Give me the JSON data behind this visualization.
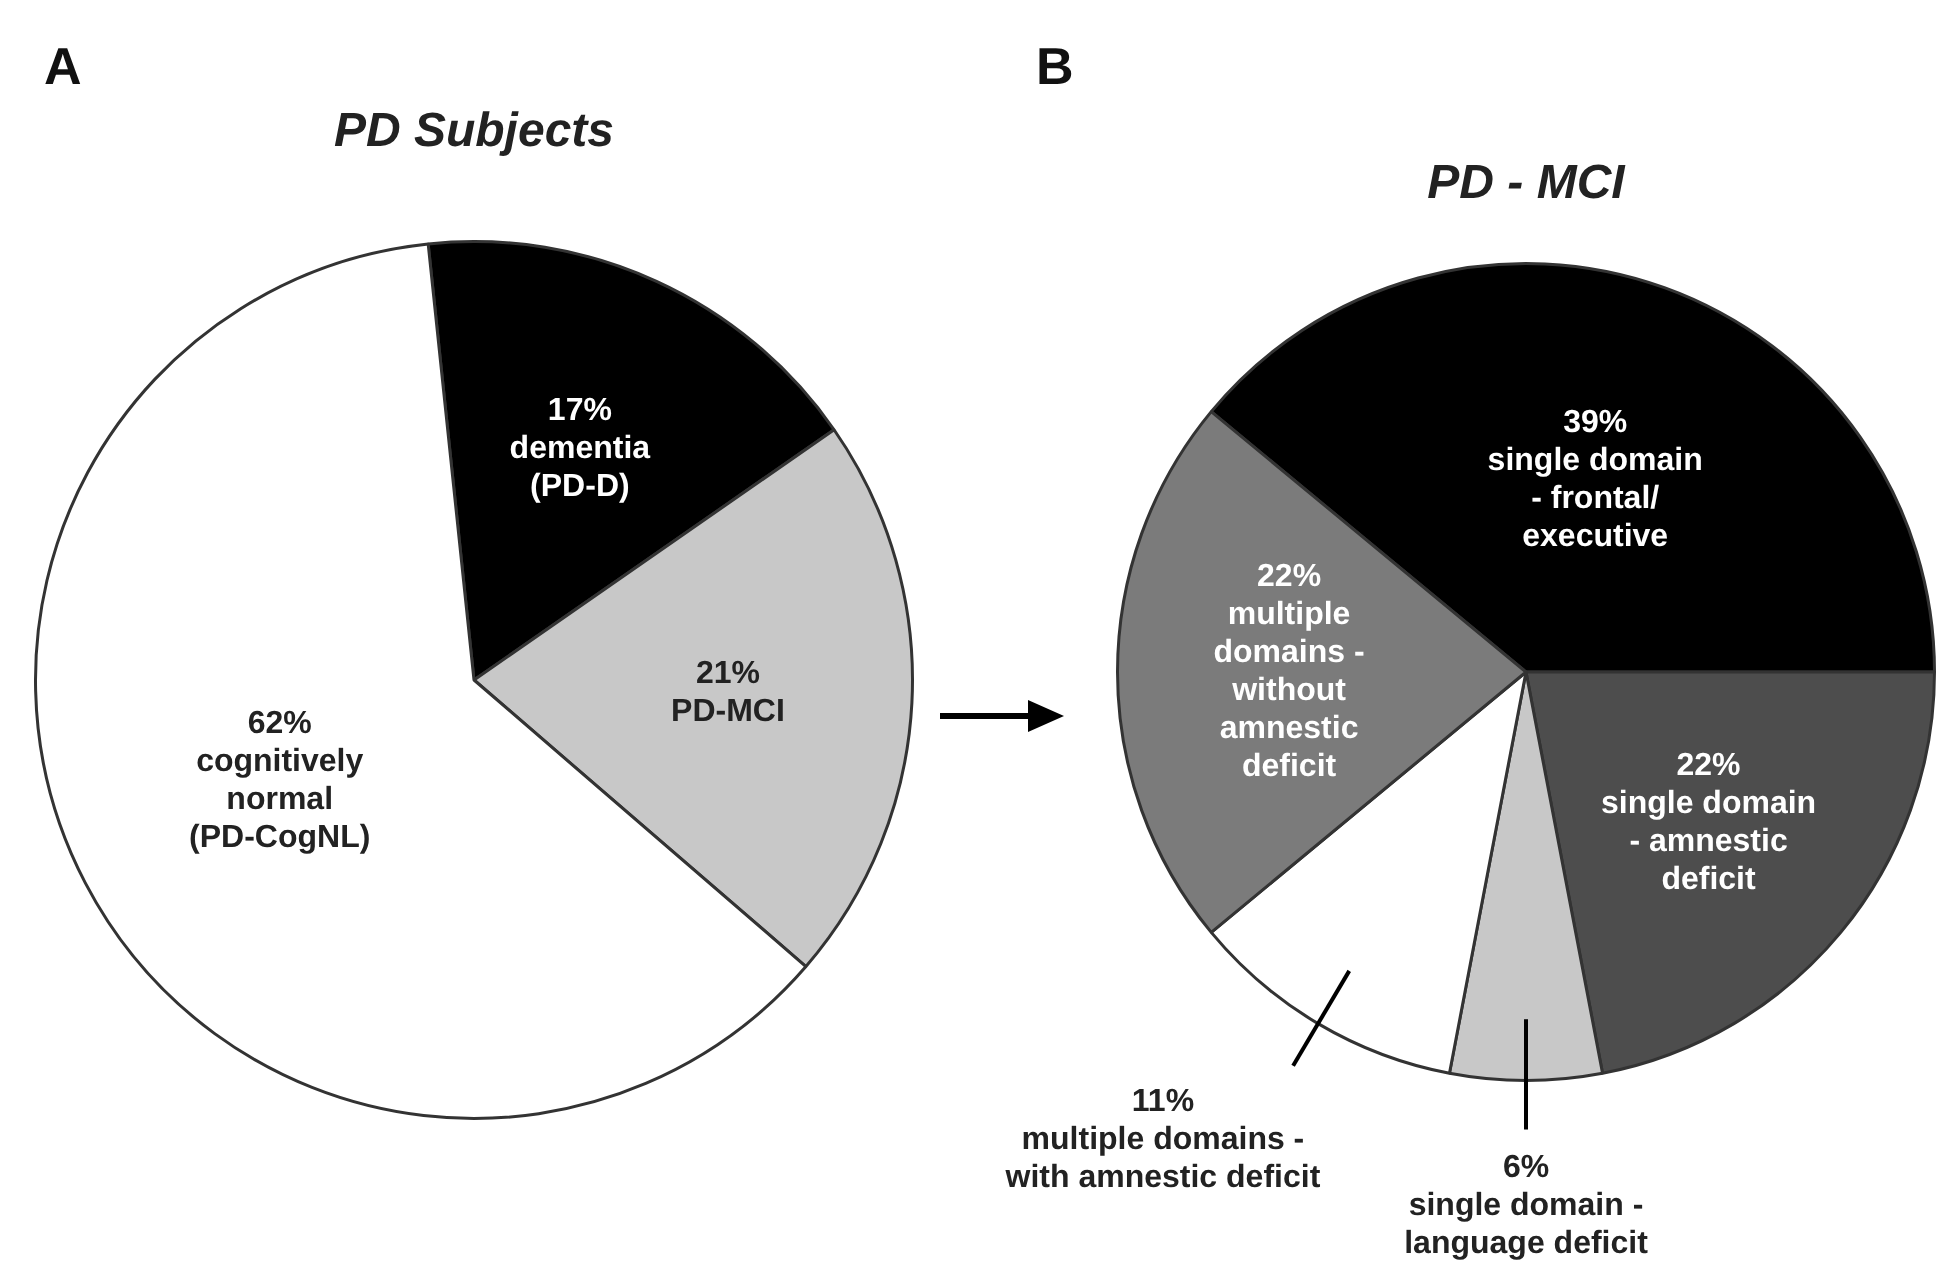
{
  "chart_data": [
    {
      "type": "pie",
      "title": "PD Subjects",
      "annotations": [
        "A"
      ],
      "categories": [
        "dementia (PD-D)",
        "PD-MCI",
        "cognitively normal (PD-CogNL)"
      ],
      "values": [
        17,
        21,
        62
      ],
      "colors": [
        "#000000",
        "#c8c8c8",
        "#ffffff"
      ],
      "value_labels": [
        "17%",
        "21%",
        "62%"
      ]
    },
    {
      "type": "pie",
      "title": "PD - MCI",
      "annotations": [
        "B"
      ],
      "categories": [
        "single domain - frontal/executive",
        "single domain - amnestic deficit",
        "single domain - language deficit",
        "multiple domains - with amnestic deficit",
        "multiple domains - without amnestic deficit"
      ],
      "values": [
        39,
        22,
        6,
        11,
        22
      ],
      "colors": [
        "#000000",
        "#4d4d4d",
        "#c8c8c8",
        "#ffffff",
        "#7b7b7b"
      ],
      "value_labels": [
        "39%",
        "22%",
        "6%",
        "11%",
        "22%"
      ]
    }
  ]
}
